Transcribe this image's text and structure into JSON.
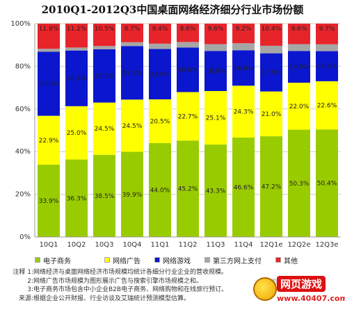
{
  "chart_data": {
    "type": "bar",
    "stacked": true,
    "percent": true,
    "title": "2010Q1-2012Q3中国桌面网络经济细分行业市场份额",
    "categories": [
      "10Q1",
      "10Q2",
      "10Q3",
      "10Q4",
      "11Q1",
      "11Q2",
      "11Q3",
      "11Q4",
      "12Q1e",
      "12Q2e",
      "12Q3e"
    ],
    "y_ticks": [
      "0%",
      "20%",
      "40%",
      "60%",
      "80%",
      "100%"
    ],
    "ylim": [
      0,
      100
    ],
    "series": [
      {
        "name": "电子商务",
        "color": "#99cc00",
        "values": [
          33.9,
          36.3,
          38.5,
          39.9,
          44.0,
          45.2,
          43.3,
          46.6,
          47.2,
          50.3,
          50.4
        ],
        "labels": [
          "33.9%",
          "36.3%",
          "38.5%",
          "39.9%",
          "44.0%",
          "45.2%",
          "43.3%",
          "46.6%",
          "47.2%",
          "50.3%",
          "50.4%"
        ]
      },
      {
        "name": "网络广告",
        "color": "#ffff00",
        "values": [
          22.9,
          25.0,
          24.5,
          24.5,
          20.5,
          22.7,
          25.1,
          24.3,
          21.0,
          22.0,
          22.6
        ],
        "labels": [
          "22.9%",
          "25.0%",
          "24.5%",
          "24.5%",
          "20.5%",
          "22.7%",
          "25.1%",
          "24.3%",
          "21.0%",
          "22.0%",
          "22.6%"
        ]
      },
      {
        "name": "网络游戏",
        "color": "#0b16cf",
        "values": [
          30.0,
          26.1,
          25.0,
          25.1,
          23.6,
          20.9,
          18.8,
          16.6,
          17.9,
          14.9,
          14.1
        ],
        "labels": [
          "30.0%",
          "26.1%",
          "25.0%",
          "25.1%",
          "23.6%",
          "20.9%",
          "18.8%",
          "16.6%",
          "17.9%",
          "14.9%",
          "14.1%"
        ]
      },
      {
        "name": "第三方网上支付",
        "color": "#a6a6a6",
        "values": [
          1.4,
          1.4,
          1.5,
          1.8,
          2.5,
          2.6,
          3.2,
          3.3,
          3.5,
          3.2,
          3.2
        ],
        "labels": []
      },
      {
        "name": "其他",
        "color": "#e8242b",
        "values": [
          11.8,
          11.2,
          10.5,
          8.7,
          9.4,
          8.6,
          9.6,
          9.2,
          10.4,
          9.6,
          9.7
        ],
        "labels": [
          "11.8%",
          "11.2%",
          "10.5%",
          "8.7%",
          "9.4%",
          "8.6%",
          "9.6%",
          "9.2%",
          "10.4%",
          "9.6%",
          "9.7%"
        ]
      }
    ],
    "grid": true,
    "legend_position": "bottom"
  },
  "notes": [
    {
      "prefix": "注释 1:",
      "text": "网络经济与桌面网络经济市场规模均统计各细分行业企业的营收规模。"
    },
    {
      "prefix": "2:",
      "text": "网络广告市场规模为图形展示广告与搜索引擎市场规模之和。"
    },
    {
      "prefix": "3:",
      "text": "电子商务市场包含中小企业B2B电子商务、网络购物和在线旅行预订。"
    },
    {
      "prefix": "来源:",
      "text": "根据企业公开财报、行业访谈及艾瑞统计预测模型估算。"
    }
  ],
  "watermark": {
    "title": "网页游戏",
    "url": "www.40407.com",
    "faint": "和"
  }
}
